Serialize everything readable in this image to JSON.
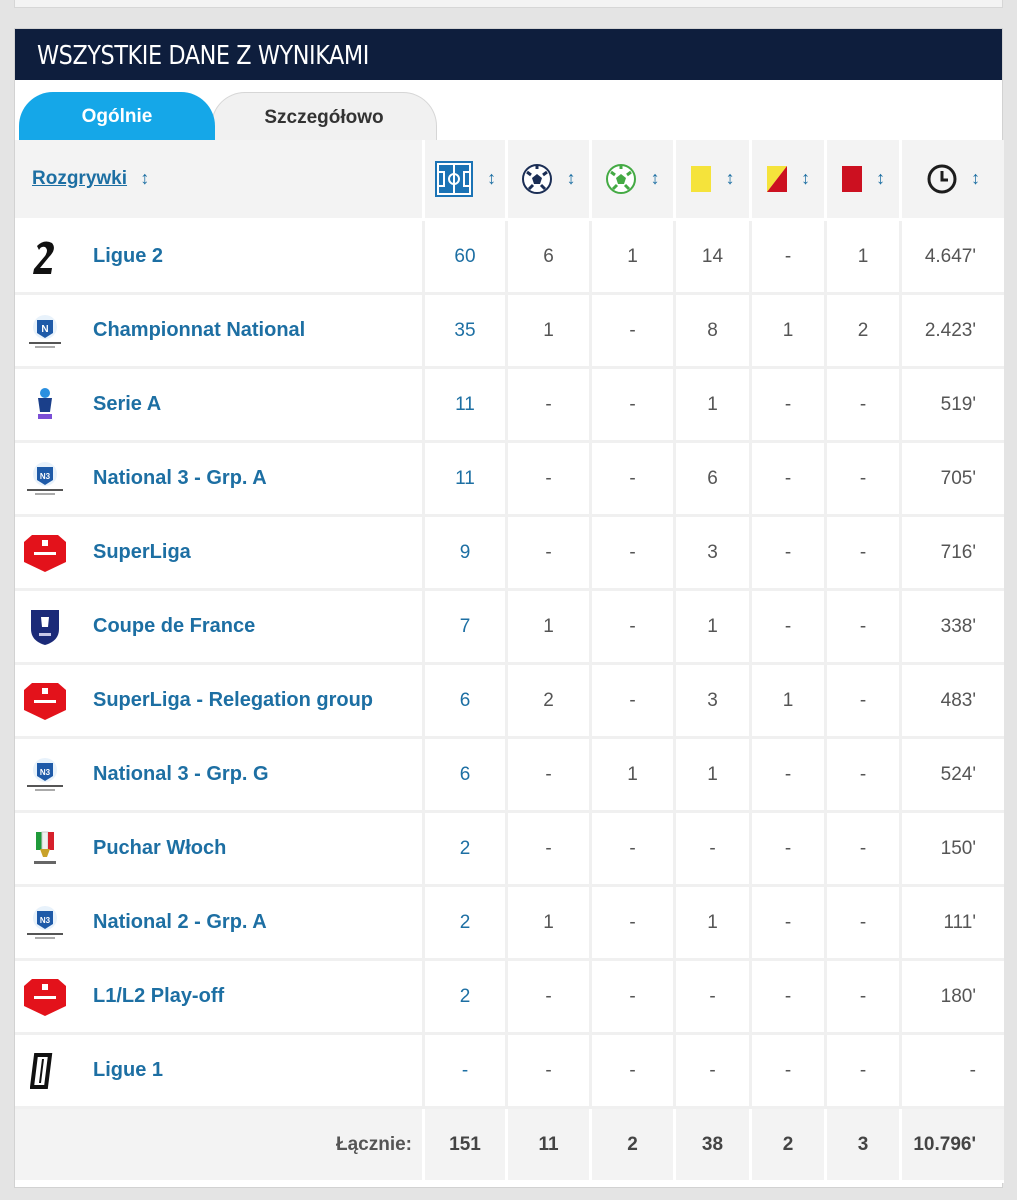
{
  "title": "WSZYSTKIE DANE Z WYNIKAMI",
  "tabs": {
    "general": "Ogólnie",
    "detailed": "Szczegółowo"
  },
  "columns": {
    "competition": "Rozgrywki",
    "sort_glyph": "↕",
    "icons": [
      "appearances-icon",
      "goals-icon",
      "assists-icon",
      "yellow-card-icon",
      "second-yellow-icon",
      "red-card-icon",
      "minutes-icon"
    ]
  },
  "colors": {
    "header": "#0e1e3d",
    "tab_active": "#15a7e8",
    "link": "#1d6fa3",
    "yellow": "#f5e33b",
    "red": "#cc1020"
  },
  "rows": [
    {
      "logo": "ligue2-logo-icon",
      "name": "Ligue 2",
      "apps": "60",
      "goals": "6",
      "assists": "1",
      "yellow": "14",
      "second_yellow": "-",
      "red": "1",
      "minutes": "4.647'"
    },
    {
      "logo": "national-logo-icon",
      "name": "Championnat National",
      "apps": "35",
      "goals": "1",
      "assists": "-",
      "yellow": "8",
      "second_yellow": "1",
      "red": "2",
      "minutes": "2.423'"
    },
    {
      "logo": "serie-a-logo-icon",
      "name": "Serie A",
      "apps": "11",
      "goals": "-",
      "assists": "-",
      "yellow": "1",
      "second_yellow": "-",
      "red": "-",
      "minutes": "519'"
    },
    {
      "logo": "national3-logo-icon",
      "name": "National 3 - Grp. A",
      "apps": "11",
      "goals": "-",
      "assists": "-",
      "yellow": "6",
      "second_yellow": "-",
      "red": "-",
      "minutes": "705'"
    },
    {
      "logo": "superliga-logo-icon",
      "name": "SuperLiga",
      "apps": "9",
      "goals": "-",
      "assists": "-",
      "yellow": "3",
      "second_yellow": "-",
      "red": "-",
      "minutes": "716'"
    },
    {
      "logo": "coupe-de-france-logo-icon",
      "name": "Coupe de France",
      "apps": "7",
      "goals": "1",
      "assists": "-",
      "yellow": "1",
      "second_yellow": "-",
      "red": "-",
      "minutes": "338'"
    },
    {
      "logo": "superliga-logo-icon",
      "name": "SuperLiga - Relegation group",
      "apps": "6",
      "goals": "2",
      "assists": "-",
      "yellow": "3",
      "second_yellow": "1",
      "red": "-",
      "minutes": "483'"
    },
    {
      "logo": "national3-logo-icon",
      "name": "National 3 - Grp. G",
      "apps": "6",
      "goals": "-",
      "assists": "1",
      "yellow": "1",
      "second_yellow": "-",
      "red": "-",
      "minutes": "524'"
    },
    {
      "logo": "coppa-italia-logo-icon",
      "name": "Puchar Włoch",
      "apps": "2",
      "goals": "-",
      "assists": "-",
      "yellow": "-",
      "second_yellow": "-",
      "red": "-",
      "minutes": "150'"
    },
    {
      "logo": "national3-logo-icon",
      "name": "National 2 - Grp. A",
      "apps": "2",
      "goals": "1",
      "assists": "-",
      "yellow": "1",
      "second_yellow": "-",
      "red": "-",
      "minutes": "111'"
    },
    {
      "logo": "superliga-logo-icon",
      "name": "L1/L2 Play-off",
      "apps": "2",
      "goals": "-",
      "assists": "-",
      "yellow": "-",
      "second_yellow": "-",
      "red": "-",
      "minutes": "180'"
    },
    {
      "logo": "ligue1-logo-icon",
      "name": "Ligue 1",
      "apps": "-",
      "goals": "-",
      "assists": "-",
      "yellow": "-",
      "second_yellow": "-",
      "red": "-",
      "minutes": "-"
    }
  ],
  "totals": {
    "label": "Łącznie:",
    "apps": "151",
    "goals": "11",
    "assists": "2",
    "yellow": "38",
    "second_yellow": "2",
    "red": "3",
    "minutes": "10.796'"
  }
}
